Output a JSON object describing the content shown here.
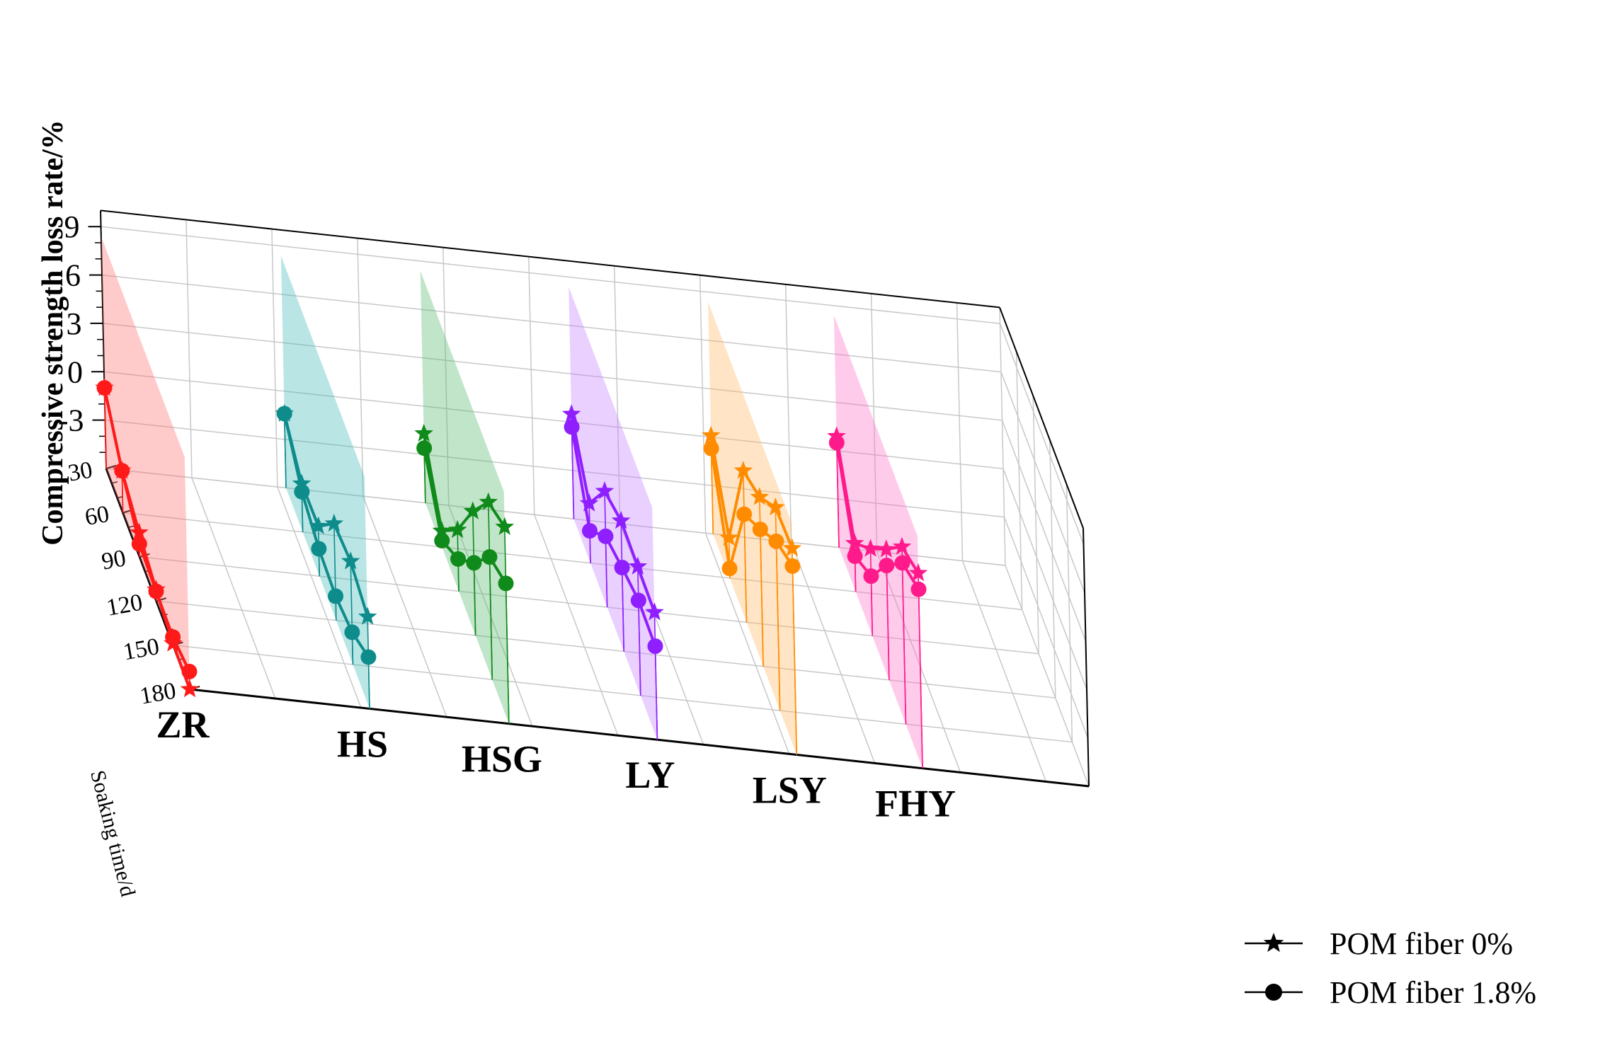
{
  "chart_data": {
    "type": "line",
    "ylabel": "Compressive strength loss rate/%",
    "zlabel": "Soaking time/d",
    "ylim": [
      -6,
      10
    ],
    "yticks": [
      "-3",
      "0",
      "3",
      "6",
      "9"
    ],
    "z": [
      30,
      60,
      90,
      120,
      150,
      180
    ],
    "ztick_labels": [
      "30",
      "60",
      "90",
      "120",
      "150",
      "180"
    ],
    "categories": [
      "ZR",
      "HS",
      "HSG",
      "LY",
      "LSY",
      "FHY"
    ],
    "colors": {
      "ZR": "#ff1a1a",
      "HS": "#0e8c8c",
      "HSG": "#108a1a",
      "LY": "#8f1fff",
      "LSY": "#ff8c00",
      "FHY": "#ff1a8c"
    },
    "plane_colors": {
      "ZR": "#ff6b6b",
      "HS": "#40b8b8",
      "HSG": "#52b86a",
      "LY": "#c27cff",
      "LSY": "#ffb45e",
      "FHY": "#ff6ec7"
    },
    "series": [
      {
        "category": "ZR",
        "name": "POM fiber 0%",
        "marker": "star",
        "values": [
          -1.0,
          -3.4,
          -4.5,
          -5.3,
          -5.9,
          -6.0
        ]
      },
      {
        "category": "ZR",
        "name": "POM fiber 1.8%",
        "marker": "circle",
        "values": [
          -1.0,
          -3.4,
          -5.2,
          -5.4,
          -5.5,
          -4.9
        ]
      },
      {
        "category": "HS",
        "name": "POM fiber 0%",
        "marker": "star",
        "values": [
          -1.4,
          -3.0,
          -2.9,
          0.0,
          0.4,
          -0.3
        ]
      },
      {
        "category": "HS",
        "name": "POM fiber 1.8%",
        "marker": "circle",
        "values": [
          -1.4,
          -3.5,
          -4.3,
          -4.5,
          -4.0,
          -2.8
        ]
      },
      {
        "category": "HSG",
        "name": "POM fiber 0%",
        "marker": "star",
        "values": [
          -1.7,
          -5.0,
          -2.2,
          1.7,
          5.0,
          6.2
        ]
      },
      {
        "category": "HSG",
        "name": "POM fiber 1.8%",
        "marker": "circle",
        "values": [
          -2.6,
          -5.6,
          -4.0,
          -1.5,
          1.6,
          2.7
        ]
      },
      {
        "category": "LY",
        "name": "POM fiber 0%",
        "marker": "star",
        "values": [
          0.5,
          -2.3,
          1.2,
          2.1,
          2.0,
          1.9
        ]
      },
      {
        "category": "LY",
        "name": "POM fiber 1.8%",
        "marker": "circle",
        "values": [
          -0.3,
          -4.0,
          -1.6,
          -0.8,
          -0.1,
          -0.2
        ]
      },
      {
        "category": "LSY",
        "name": "POM fiber 0%",
        "marker": "star",
        "values": [
          0.1,
          -3.5,
          3.4,
          4.5,
          6.6,
          6.8
        ]
      },
      {
        "category": "LSY",
        "name": "POM fiber 1.8%",
        "marker": "circle",
        "values": [
          -0.7,
          -5.4,
          0.7,
          2.5,
          4.5,
          5.7
        ]
      },
      {
        "category": "FHY",
        "name": "POM fiber 0%",
        "marker": "star",
        "values": [
          0.9,
          -3.0,
          -0.6,
          2.1,
          5.0,
          6.1
        ]
      },
      {
        "category": "FHY",
        "name": "POM fiber 1.8%",
        "marker": "circle",
        "values": [
          0.5,
          -3.8,
          -2.3,
          1.1,
          4.0,
          5.1
        ]
      }
    ],
    "legend": [
      {
        "label": "POM fiber 0%",
        "marker": "star"
      },
      {
        "label": "POM fiber 1.8%",
        "marker": "circle"
      }
    ],
    "legend_position": "bottom-right",
    "grid": true
  }
}
